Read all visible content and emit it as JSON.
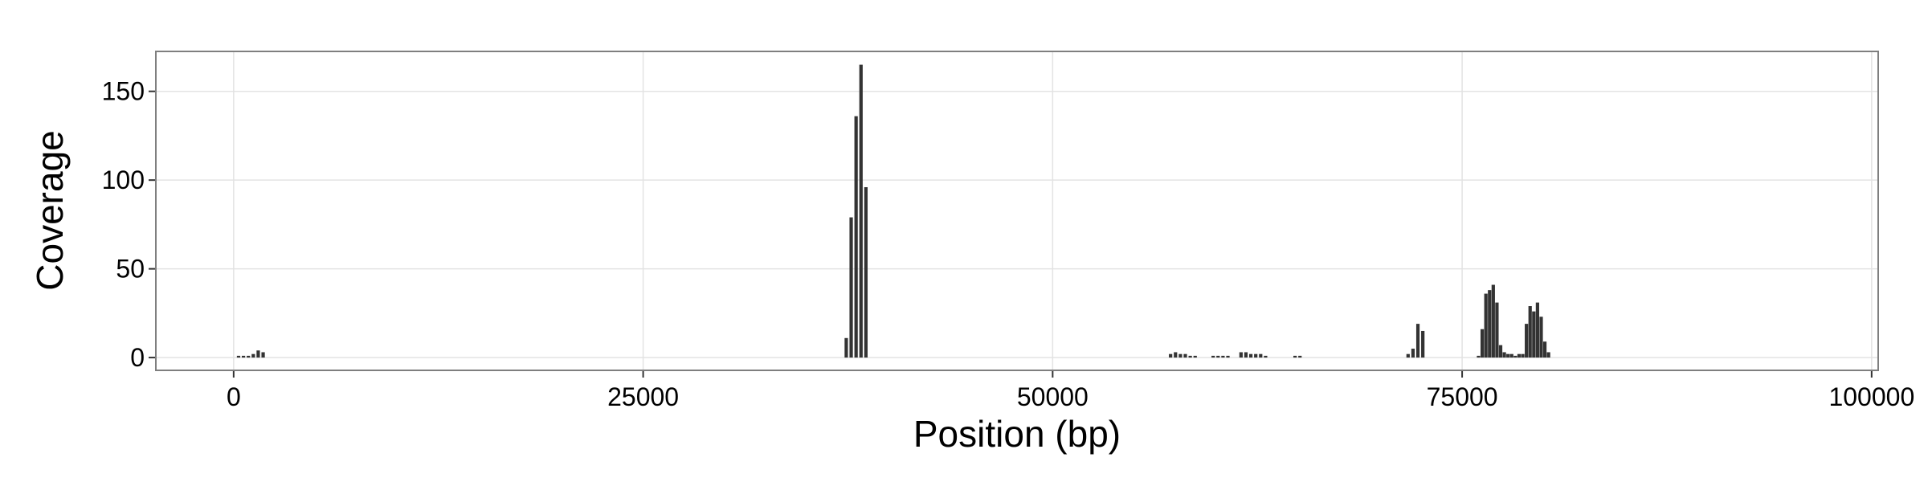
{
  "chart_data": {
    "type": "bar",
    "xlabel": "Position (bp)",
    "ylabel": "Coverage",
    "x": [
      300,
      600,
      900,
      1200,
      1500,
      1800,
      37400,
      37700,
      38000,
      38300,
      38600,
      57200,
      57500,
      57800,
      58100,
      58400,
      58700,
      59800,
      60100,
      60400,
      60700,
      61500,
      61800,
      62100,
      62400,
      62700,
      63000,
      64800,
      65100,
      71700,
      72000,
      72300,
      72600,
      76000,
      76225,
      76450,
      76675,
      76900,
      77125,
      77350,
      77575,
      77800,
      78025,
      78250,
      78475,
      78700,
      78925,
      79150,
      79375,
      79600,
      79825,
      80050,
      80275
    ],
    "values": [
      1,
      1,
      1,
      2,
      4,
      3,
      11,
      79,
      136,
      165,
      96,
      2,
      3,
      2,
      2,
      1,
      1,
      1,
      1,
      1,
      1,
      3,
      3,
      2,
      2,
      2,
      1,
      1,
      1,
      2,
      5,
      19,
      15,
      1,
      16,
      36,
      38,
      41,
      31,
      7,
      3,
      2,
      2,
      1,
      2,
      2,
      19,
      29,
      26,
      31,
      23,
      9,
      3
    ],
    "color": "#333333",
    "xlim": [
      -4750,
      100400
    ],
    "ylim": [
      -7.2,
      172.5
    ],
    "xticks": [
      0,
      25000,
      50000,
      75000,
      100000
    ],
    "yticks": [
      0,
      50,
      100,
      150
    ],
    "grid": true
  }
}
